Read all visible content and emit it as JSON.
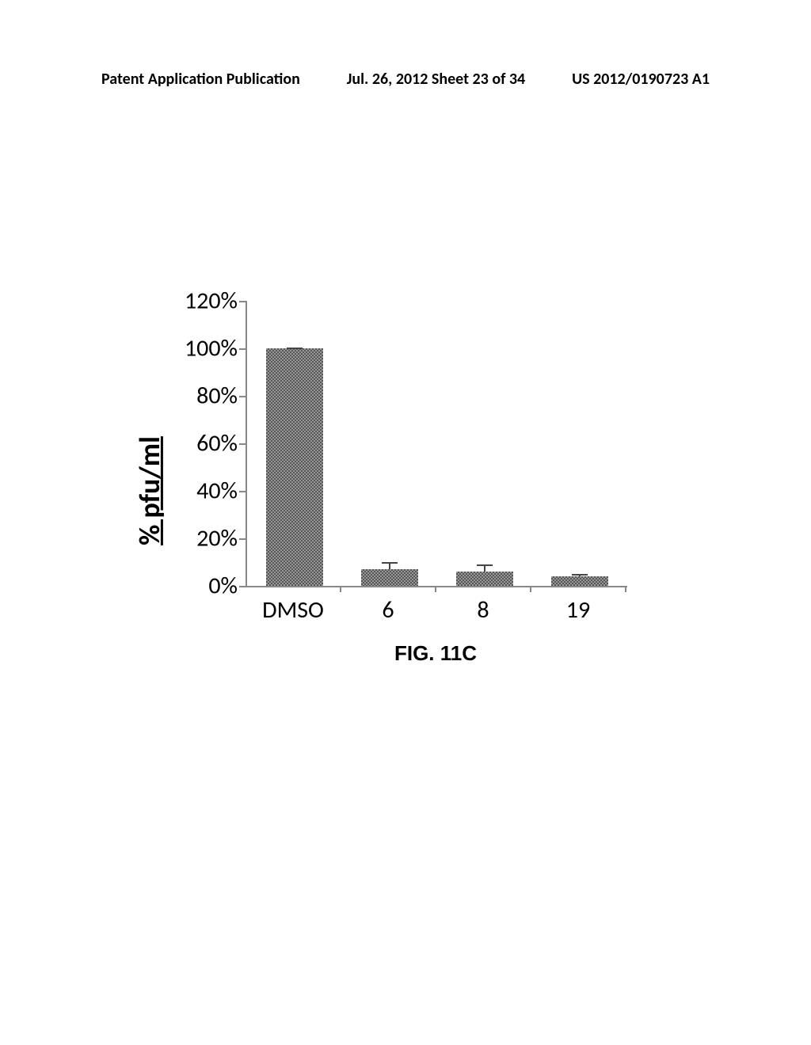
{
  "header": {
    "left": "Patent Application Publication",
    "center": "Jul. 26, 2012  Sheet 23 of 34",
    "right": "US 2012/0190723 A1"
  },
  "chart": {
    "type": "bar",
    "y_axis_label": "% pfu/ml",
    "categories": [
      "DMSO",
      "6",
      "8",
      "19"
    ],
    "values": [
      100,
      7,
      6,
      4
    ],
    "errors": [
      0.5,
      3,
      3,
      1
    ],
    "bar_color": "#7a7a7a",
    "ylim": [
      0,
      120
    ],
    "ytick_step": 20,
    "y_ticks": [
      "0%",
      "20%",
      "40%",
      "60%",
      "80%",
      "100%",
      "120%"
    ],
    "axis_color": "#888888",
    "text_color": "#000000",
    "bar_width": 0.6,
    "label_fontsize": 30,
    "axis_label_fontsize": 36
  },
  "figure_caption": "FIG. 11C"
}
